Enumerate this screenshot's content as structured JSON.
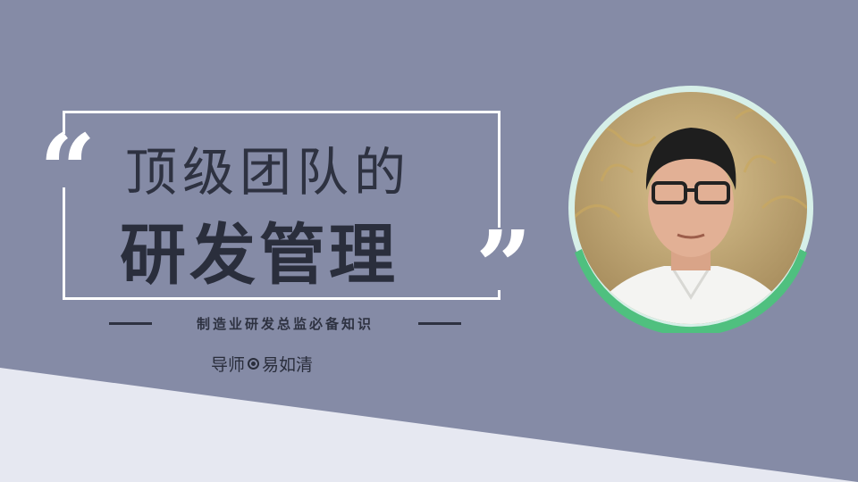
{
  "banner": {
    "title_line1": "顶级团队的",
    "title_line2": "研发管理",
    "quote_open": "“",
    "quote_close": "”",
    "subtitle": "制造业研发总监必备知识",
    "mentor_prefix": "导师",
    "mentor_name": "易如清"
  },
  "portrait": {
    "icon": "instructor-portrait"
  },
  "colors": {
    "background": "#858ba6",
    "bottom_band": "#e6e8f1",
    "title_text": "#2e3241",
    "frame": "#ffffff",
    "portrait_ring_green": "#4fc07f",
    "portrait_ring_light": "#d6efe8"
  }
}
